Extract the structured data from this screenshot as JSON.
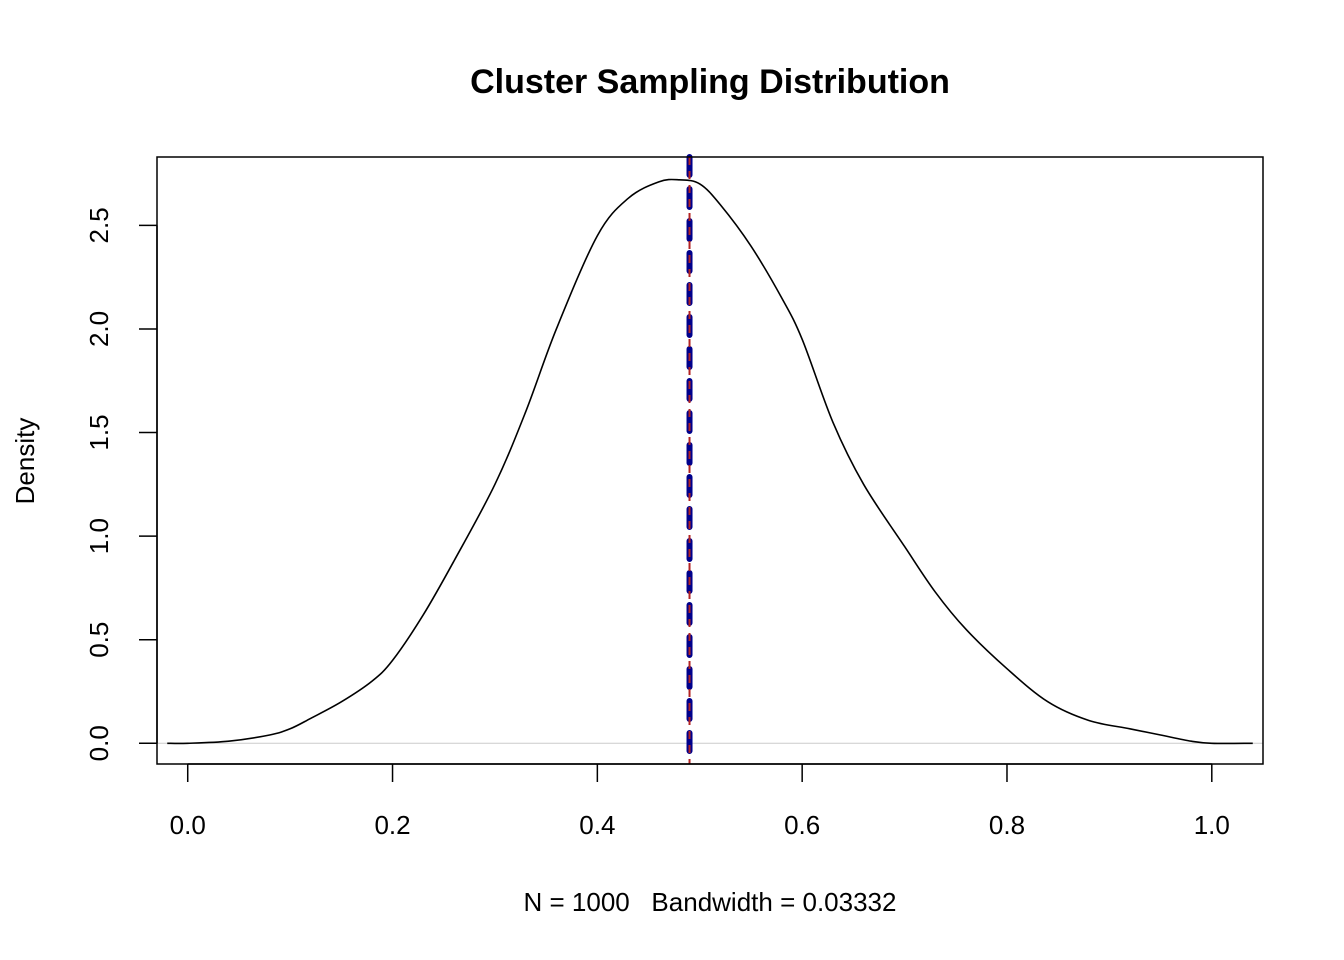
{
  "chart_data": {
    "type": "line",
    "title": "Cluster Sampling Distribution",
    "xlabel": "N = 1000   Bandwidth = 0.03332",
    "ylabel": "Density",
    "xlim": [
      -0.03,
      1.05
    ],
    "ylim": [
      -0.1,
      2.83
    ],
    "x_ticks": [
      "0.0",
      "0.2",
      "0.4",
      "0.6",
      "0.8",
      "1.0"
    ],
    "y_ticks": [
      "0.0",
      "0.5",
      "1.0",
      "1.5",
      "2.0",
      "2.5"
    ],
    "grid": false,
    "series": [
      {
        "color": "#000000",
        "x": [
          -0.02,
          0.0,
          0.04,
          0.08,
          0.1,
          0.12,
          0.15,
          0.18,
          0.2,
          0.23,
          0.26,
          0.3,
          0.33,
          0.36,
          0.4,
          0.43,
          0.46,
          0.48,
          0.5,
          0.52,
          0.55,
          0.58,
          0.6,
          0.63,
          0.66,
          0.7,
          0.73,
          0.76,
          0.8,
          0.84,
          0.88,
          0.92,
          0.95,
          0.98,
          1.0,
          1.04
        ],
        "y": [
          0.0,
          0.0,
          0.01,
          0.04,
          0.07,
          0.12,
          0.2,
          0.3,
          0.4,
          0.62,
          0.88,
          1.25,
          1.6,
          2.0,
          2.45,
          2.63,
          2.71,
          2.72,
          2.7,
          2.6,
          2.4,
          2.15,
          1.95,
          1.55,
          1.25,
          0.95,
          0.73,
          0.55,
          0.36,
          0.2,
          0.11,
          0.07,
          0.04,
          0.01,
          0.0,
          0.0
        ]
      }
    ],
    "baseline": {
      "y": 0,
      "color": "#cccccc"
    },
    "reference_lines": [
      {
        "x": 0.49,
        "color": "#00008b",
        "style": "dashed-thick"
      },
      {
        "x": 0.49,
        "color": "#b22222",
        "style": "dashed-thin"
      }
    ]
  }
}
